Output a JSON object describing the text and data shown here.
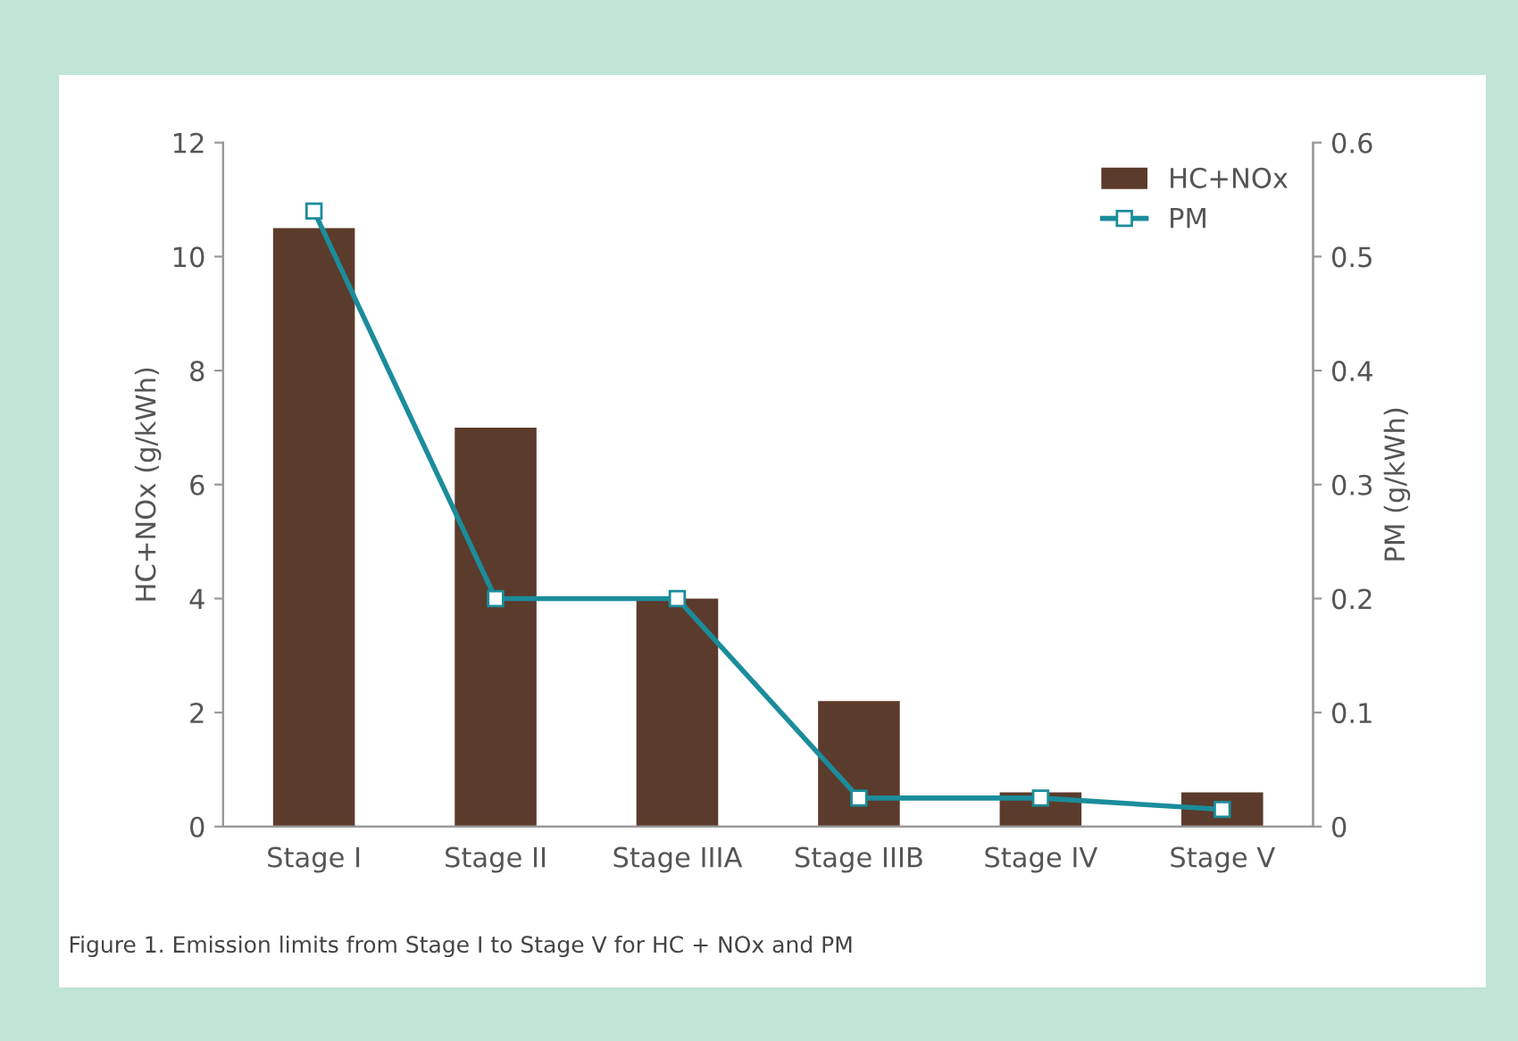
{
  "chart_data": {
    "type": "bar",
    "categories": [
      "Stage I",
      "Stage II",
      "Stage IIIA",
      "Stage IIIB",
      "Stage IV",
      "Stage V"
    ],
    "series": [
      {
        "name": "HC+NOx",
        "color": "#5b3b2b",
        "values": [
          10.5,
          7,
          4,
          2.2,
          0.6,
          0.6
        ]
      },
      {
        "name": "PM",
        "type": "line",
        "axis": "y2",
        "color": "#1b8c9b",
        "marker": "square",
        "values": [
          0.54,
          0.2,
          0.2,
          0.025,
          0.025,
          0.015
        ]
      }
    ],
    "ylabel": "HC+NOx (g/kWh)",
    "y2label": "PM (g/kWh)",
    "ylim": [
      0,
      12
    ],
    "yticks": [
      0,
      2,
      4,
      6,
      8,
      10,
      12
    ],
    "y2lim": [
      0,
      0.6
    ],
    "y2ticks": [
      0,
      0.1,
      0.2,
      0.3,
      0.4,
      0.5,
      0.6
    ],
    "legend": "top right",
    "grid": false,
    "annotations": [
      "Figure 1. Emission limits from Stage I to Stage V for HC + NOx and PM"
    ]
  }
}
